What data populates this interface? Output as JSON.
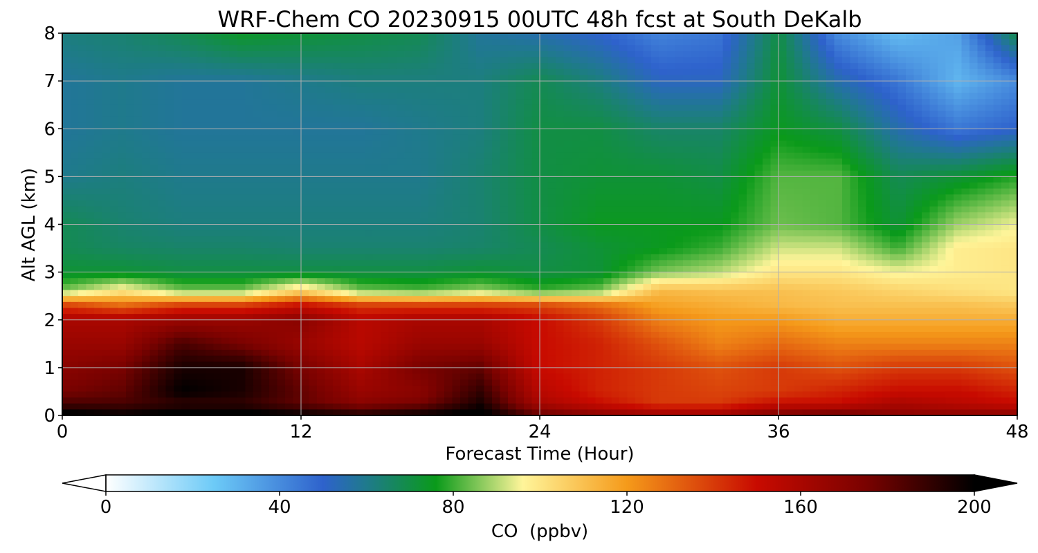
{
  "chart_data": {
    "type": "heatmap",
    "title": "WRF-Chem CO  20230915 00UTC 48h fcst at South DeKalb",
    "xlabel": "Forecast Time (Hour)",
    "ylabel": "Alt AGL (km)",
    "xlim": [
      0,
      48
    ],
    "ylim": [
      0,
      8
    ],
    "x_ticks": [
      "0",
      "12",
      "24",
      "36",
      "48"
    ],
    "y_ticks": [
      "0",
      "1",
      "2",
      "3",
      "4",
      "5",
      "6",
      "7",
      "8"
    ],
    "grid": true,
    "colorbar": {
      "label": "CO  (ppbv)",
      "vmin": 0,
      "vmax": 200,
      "ticks": [
        "0",
        "40",
        "80",
        "120",
        "160",
        "200"
      ],
      "extend": "both",
      "stops": [
        {
          "v": 0,
          "color": "#ffffff"
        },
        {
          "v": 25,
          "color": "#6ccaf7"
        },
        {
          "v": 50,
          "color": "#2e62cc"
        },
        {
          "v": 60,
          "color": "#1f7a8c"
        },
        {
          "v": 76,
          "color": "#0a9a1a"
        },
        {
          "v": 96,
          "color": "#fff59a"
        },
        {
          "v": 120,
          "color": "#f59a1a"
        },
        {
          "v": 150,
          "color": "#c80a00"
        },
        {
          "v": 175,
          "color": "#7a0200"
        },
        {
          "v": 200,
          "color": "#000000"
        }
      ]
    },
    "x": [
      0,
      3,
      6,
      9,
      12,
      15,
      18,
      21,
      24,
      27,
      30,
      33,
      36,
      39,
      42,
      45,
      48
    ],
    "y": [
      0,
      0.25,
      0.5,
      1,
      1.5,
      2,
      2.3,
      2.6,
      3,
      3.5,
      4,
      5,
      6,
      7,
      8
    ],
    "values": [
      [
        205,
        200,
        205,
        205,
        200,
        195,
        200,
        205,
        180,
        170,
        165,
        165,
        175,
        180,
        170,
        170,
        170
      ],
      [
        185,
        185,
        190,
        190,
        180,
        170,
        175,
        195,
        160,
        150,
        140,
        140,
        150,
        150,
        160,
        155,
        150
      ],
      [
        175,
        180,
        200,
        195,
        180,
        165,
        170,
        190,
        155,
        145,
        140,
        138,
        140,
        145,
        150,
        150,
        145
      ],
      [
        170,
        175,
        195,
        195,
        175,
        160,
        175,
        180,
        150,
        145,
        140,
        135,
        140,
        135,
        140,
        140,
        135
      ],
      [
        165,
        165,
        185,
        175,
        165,
        155,
        165,
        165,
        150,
        145,
        135,
        125,
        130,
        125,
        125,
        125,
        125
      ],
      [
        160,
        160,
        165,
        165,
        170,
        155,
        160,
        160,
        150,
        140,
        125,
        120,
        120,
        115,
        115,
        115,
        115
      ],
      [
        140,
        130,
        140,
        140,
        150,
        140,
        140,
        140,
        138,
        130,
        118,
        115,
        112,
        110,
        110,
        110,
        108
      ],
      [
        85,
        100,
        85,
        85,
        105,
        85,
        82,
        88,
        80,
        85,
        112,
        110,
        110,
        108,
        105,
        102,
        100
      ],
      [
        72,
        72,
        70,
        70,
        70,
        70,
        70,
        72,
        70,
        72,
        85,
        90,
        100,
        100,
        95,
        98,
        100
      ],
      [
        68,
        66,
        65,
        65,
        64,
        64,
        64,
        65,
        68,
        72,
        75,
        80,
        92,
        92,
        80,
        98,
        100
      ],
      [
        68,
        64,
        62,
        62,
        62,
        62,
        62,
        64,
        70,
        75,
        75,
        75,
        84,
        82,
        72,
        88,
        95
      ],
      [
        60,
        62,
        60,
        60,
        60,
        60,
        60,
        64,
        70,
        72,
        72,
        70,
        82,
        82,
        68,
        72,
        78
      ],
      [
        58,
        60,
        58,
        58,
        58,
        58,
        60,
        62,
        70,
        70,
        65,
        65,
        75,
        70,
        55,
        45,
        50
      ],
      [
        58,
        60,
        58,
        58,
        60,
        62,
        62,
        62,
        68,
        62,
        52,
        52,
        72,
        55,
        45,
        30,
        40
      ],
      [
        62,
        64,
        68,
        74,
        72,
        70,
        68,
        58,
        55,
        50,
        42,
        45,
        70,
        40,
        28,
        35,
        70
      ]
    ]
  }
}
